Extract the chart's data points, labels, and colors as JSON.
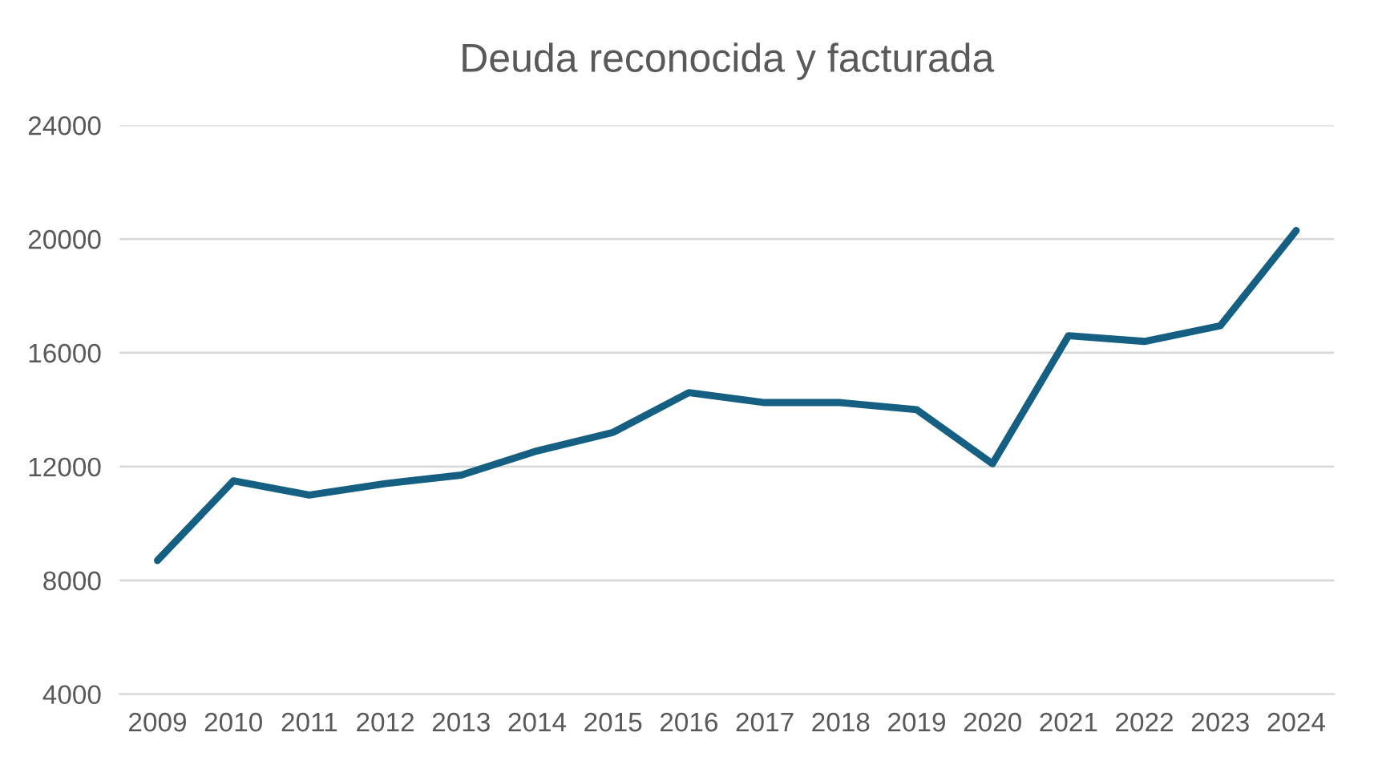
{
  "chart_data": {
    "type": "line",
    "title": "Deuda reconocida y facturada",
    "categories": [
      "2009",
      "2010",
      "2011",
      "2012",
      "2013",
      "2014",
      "2015",
      "2016",
      "2017",
      "2018",
      "2019",
      "2020",
      "2021",
      "2022",
      "2023",
      "2024"
    ],
    "series": [
      {
        "color": "#156082",
        "values": [
          8700,
          11500,
          11000,
          11400,
          11700,
          12550,
          13200,
          14600,
          14250,
          14250,
          14000,
          12100,
          16600,
          16400,
          16950,
          20300
        ]
      }
    ],
    "ylim": [
      4000,
      24000
    ],
    "yticks": [
      4000,
      8000,
      12000,
      16000,
      20000,
      24000
    ],
    "grid": "y",
    "legend": false,
    "marker": "none",
    "line_style": "solid"
  }
}
